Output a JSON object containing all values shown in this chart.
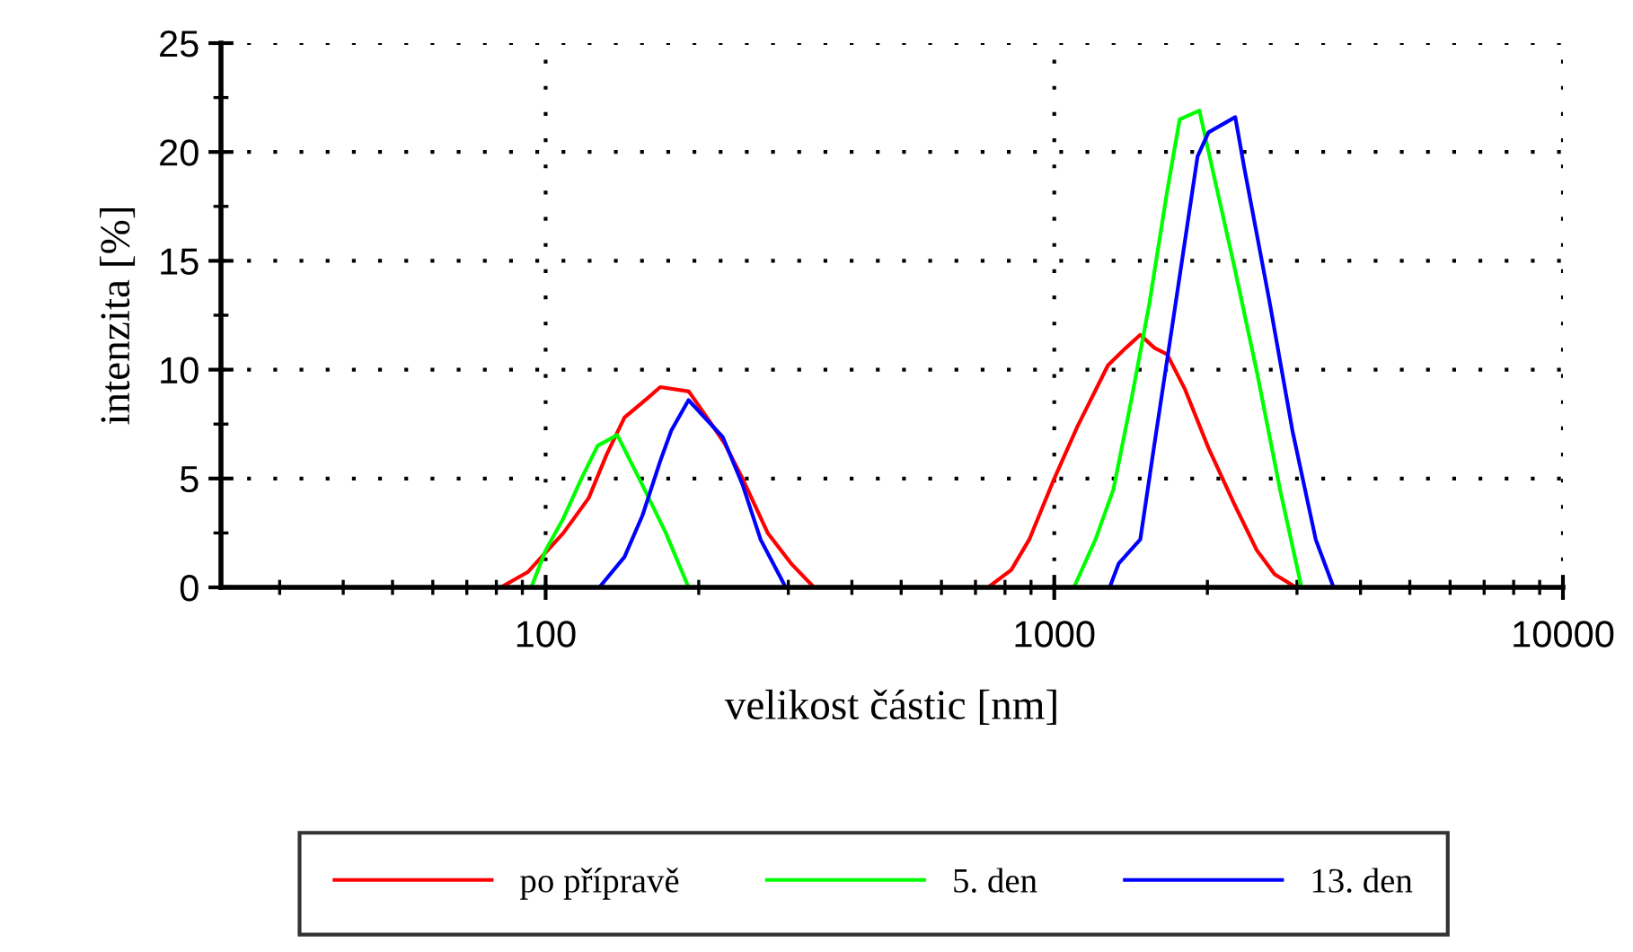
{
  "chart_data": {
    "type": "line",
    "xlabel": "velikost částic [nm]",
    "ylabel": "intenzita [%]",
    "log": "x",
    "xlim": [
      23,
      10000
    ],
    "xticks": [
      100,
      1000,
      10000
    ],
    "ylim": [
      0,
      25
    ],
    "yticks": [
      0,
      5,
      10,
      15,
      20,
      25
    ],
    "grid": true,
    "legend": "bottom",
    "series": [
      {
        "name": "po přípravě",
        "color": "#ff0000",
        "x": [
          30,
          81.6,
          92.2,
          100,
          108.4,
          121.5,
          131.8,
          142.9,
          158.8,
          168,
          191.2,
          207.6,
          225,
          243.8,
          273.3,
          303.7,
          337,
          741,
          823,
          893,
          1000,
          1111,
          1275,
          1383,
          1476,
          1574,
          1667,
          1807,
          2010,
          2251,
          2502,
          2712,
          2988,
          10000
        ],
        "values": [
          0,
          0,
          0.7,
          1.6,
          2.5,
          4.1,
          6.1,
          7.8,
          8.7,
          9.2,
          9.0,
          7.8,
          6.6,
          5.0,
          2.5,
          1.1,
          0,
          0,
          0.8,
          2.2,
          5.0,
          7.4,
          10.2,
          11.0,
          11.6,
          11.0,
          10.7,
          9.1,
          6.4,
          3.9,
          1.7,
          0.6,
          0,
          0
        ]
      },
      {
        "name": "5. den",
        "color": "#00ff00",
        "x": [
          30,
          93.7,
          100,
          108,
          117.6,
          126.5,
          138.3,
          155,
          172.3,
          191,
          1093,
          1205,
          1307,
          1417,
          1537,
          1667,
          1764,
          1929,
          2042,
          2251,
          2502,
          2778,
          3062,
          10000
        ],
        "values": [
          0,
          0,
          1.7,
          3.1,
          5.0,
          6.5,
          7.0,
          4.7,
          2.5,
          0,
          0,
          2.2,
          4.5,
          8.6,
          13.0,
          18.2,
          21.5,
          21.9,
          19.3,
          14.9,
          9.9,
          4.5,
          0,
          0
        ]
      },
      {
        "name": "13. den",
        "color": "#0000ff",
        "x": [
          30,
          127.5,
          142.9,
          155,
          168,
          176.6,
          191,
          223,
          244,
          264.6,
          296.5,
          1285,
          1339,
          1476,
          1574,
          1708,
          1913,
          2010,
          2269,
          2362,
          2646,
          2939,
          3266,
          3540,
          10000
        ],
        "values": [
          0,
          0,
          1.4,
          3.3,
          5.8,
          7.2,
          8.6,
          6.9,
          4.7,
          2.2,
          0,
          0,
          1.1,
          2.2,
          6.6,
          12.1,
          19.8,
          20.9,
          21.6,
          19.3,
          13.2,
          7.2,
          2.2,
          0,
          0
        ]
      }
    ]
  }
}
